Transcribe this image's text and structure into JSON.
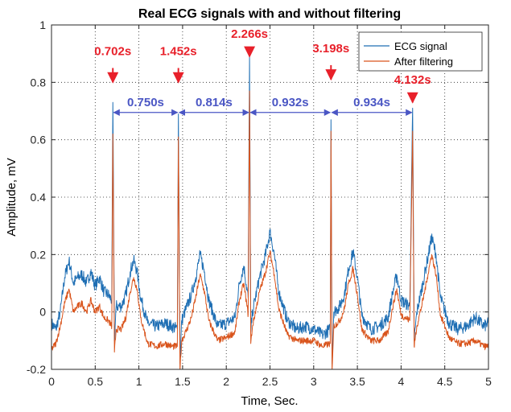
{
  "chart_data": {
    "type": "line",
    "title": "Real ECG signals with and without filtering",
    "xlabel": "Time, Sec.",
    "ylabel": "Amplitude, mV",
    "xlim": [
      0,
      5
    ],
    "ylim": [
      -0.2,
      1
    ],
    "xticks": [
      0,
      0.5,
      1,
      1.5,
      2,
      2.5,
      3,
      3.5,
      4,
      4.5,
      5
    ],
    "yticks": [
      -0.2,
      0,
      0.2,
      0.4,
      0.6,
      0.8,
      1
    ],
    "grid": "dotted",
    "legend_position": "top-right",
    "colors": {
      "raw": "#1f6fb4",
      "filtered": "#d9541c",
      "peak_label": "#e8202a",
      "interval_label": "#4a56c4"
    },
    "series": [
      {
        "name": "ECG signal",
        "key": "raw",
        "baseline_offset": 0.0,
        "points": [
          [
            0,
            -0.04
          ],
          [
            0.05,
            -0.06
          ],
          [
            0.1,
            0.0
          ],
          [
            0.15,
            0.12
          ],
          [
            0.2,
            0.18
          ],
          [
            0.25,
            0.1
          ],
          [
            0.3,
            0.12
          ],
          [
            0.35,
            0.13
          ],
          [
            0.4,
            0.1
          ],
          [
            0.45,
            0.14
          ],
          [
            0.5,
            0.09
          ],
          [
            0.55,
            0.12
          ],
          [
            0.6,
            0.07
          ],
          [
            0.65,
            0.06
          ],
          [
            0.69,
            0.04
          ],
          [
            0.702,
            0.73
          ],
          [
            0.72,
            -0.1
          ],
          [
            0.74,
            0.02
          ],
          [
            0.8,
            0.02
          ],
          [
            0.85,
            0.06
          ],
          [
            0.9,
            0.14
          ],
          [
            0.94,
            0.18
          ],
          [
            0.98,
            0.14
          ],
          [
            1.02,
            0.05
          ],
          [
            1.1,
            -0.04
          ],
          [
            1.2,
            -0.05
          ],
          [
            1.3,
            -0.04
          ],
          [
            1.38,
            -0.05
          ],
          [
            1.44,
            -0.06
          ],
          [
            1.452,
            0.69
          ],
          [
            1.47,
            -0.18
          ],
          [
            1.49,
            -0.03
          ],
          [
            1.55,
            0.02
          ],
          [
            1.6,
            0.06
          ],
          [
            1.65,
            0.12
          ],
          [
            1.7,
            0.2
          ],
          [
            1.75,
            0.14
          ],
          [
            1.8,
            0.04
          ],
          [
            1.9,
            -0.05
          ],
          [
            2.0,
            -0.04
          ],
          [
            2.1,
            -0.02
          ],
          [
            2.15,
            0.1
          ],
          [
            2.2,
            0.16
          ],
          [
            2.25,
            0.05
          ],
          [
            2.266,
            0.89
          ],
          [
            2.28,
            -0.07
          ],
          [
            2.3,
            0.0
          ],
          [
            2.38,
            0.12
          ],
          [
            2.45,
            0.2
          ],
          [
            2.5,
            0.28
          ],
          [
            2.55,
            0.2
          ],
          [
            2.6,
            0.07
          ],
          [
            2.7,
            -0.03
          ],
          [
            2.8,
            -0.06
          ],
          [
            2.9,
            -0.05
          ],
          [
            3.0,
            -0.06
          ],
          [
            3.1,
            -0.08
          ],
          [
            3.19,
            -0.06
          ],
          [
            3.198,
            0.67
          ],
          [
            3.21,
            -0.18
          ],
          [
            3.23,
            0.0
          ],
          [
            3.3,
            0.02
          ],
          [
            3.35,
            0.06
          ],
          [
            3.4,
            0.15
          ],
          [
            3.45,
            0.21
          ],
          [
            3.5,
            0.12
          ],
          [
            3.55,
            -0.01
          ],
          [
            3.65,
            -0.06
          ],
          [
            3.75,
            -0.05
          ],
          [
            3.85,
            -0.02
          ],
          [
            3.9,
            0.06
          ],
          [
            3.95,
            0.13
          ],
          [
            4.0,
            0.04
          ],
          [
            4.1,
            0.02
          ],
          [
            4.132,
            0.71
          ],
          [
            4.15,
            -0.1
          ],
          [
            4.18,
            0.0
          ],
          [
            4.25,
            0.1
          ],
          [
            4.3,
            0.18
          ],
          [
            4.35,
            0.26
          ],
          [
            4.4,
            0.2
          ],
          [
            4.45,
            0.05
          ],
          [
            4.55,
            -0.04
          ],
          [
            4.65,
            -0.06
          ],
          [
            4.75,
            -0.05
          ],
          [
            4.85,
            -0.02
          ],
          [
            4.95,
            -0.05
          ],
          [
            5.0,
            -0.04
          ]
        ]
      },
      {
        "name": "After filtering",
        "key": "filtered",
        "baseline_offset": -0.04,
        "points": [
          [
            0,
            -0.13
          ],
          [
            0.05,
            -0.11
          ],
          [
            0.1,
            -0.05
          ],
          [
            0.15,
            0.03
          ],
          [
            0.2,
            0.08
          ],
          [
            0.25,
            0.0
          ],
          [
            0.3,
            0.02
          ],
          [
            0.35,
            0.03
          ],
          [
            0.4,
            0.0
          ],
          [
            0.45,
            0.04
          ],
          [
            0.5,
            0.0
          ],
          [
            0.55,
            0.02
          ],
          [
            0.6,
            -0.02
          ],
          [
            0.65,
            -0.03
          ],
          [
            0.69,
            -0.05
          ],
          [
            0.702,
            0.62
          ],
          [
            0.72,
            -0.14
          ],
          [
            0.74,
            -0.06
          ],
          [
            0.8,
            -0.06
          ],
          [
            0.85,
            -0.02
          ],
          [
            0.9,
            0.07
          ],
          [
            0.94,
            0.12
          ],
          [
            0.98,
            0.08
          ],
          [
            1.02,
            -0.02
          ],
          [
            1.1,
            -0.11
          ],
          [
            1.2,
            -0.12
          ],
          [
            1.3,
            -0.11
          ],
          [
            1.38,
            -0.12
          ],
          [
            1.44,
            -0.12
          ],
          [
            1.452,
            0.61
          ],
          [
            1.47,
            -0.2
          ],
          [
            1.49,
            -0.1
          ],
          [
            1.55,
            -0.06
          ],
          [
            1.6,
            -0.02
          ],
          [
            1.65,
            0.05
          ],
          [
            1.7,
            0.13
          ],
          [
            1.75,
            0.07
          ],
          [
            1.8,
            -0.03
          ],
          [
            1.9,
            -0.1
          ],
          [
            2.0,
            -0.09
          ],
          [
            2.1,
            -0.07
          ],
          [
            2.15,
            0.04
          ],
          [
            2.2,
            0.1
          ],
          [
            2.25,
            -0.01
          ],
          [
            2.266,
            0.77
          ],
          [
            2.28,
            -0.11
          ],
          [
            2.3,
            -0.05
          ],
          [
            2.38,
            0.07
          ],
          [
            2.45,
            0.14
          ],
          [
            2.5,
            0.21
          ],
          [
            2.55,
            0.13
          ],
          [
            2.6,
            0.01
          ],
          [
            2.7,
            -0.08
          ],
          [
            2.8,
            -0.1
          ],
          [
            2.9,
            -0.1
          ],
          [
            3.0,
            -0.1
          ],
          [
            3.1,
            -0.12
          ],
          [
            3.19,
            -0.11
          ],
          [
            3.198,
            0.63
          ],
          [
            3.21,
            -0.2
          ],
          [
            3.23,
            -0.05
          ],
          [
            3.3,
            -0.03
          ],
          [
            3.35,
            0.01
          ],
          [
            3.4,
            0.1
          ],
          [
            3.45,
            0.15
          ],
          [
            3.5,
            0.06
          ],
          [
            3.55,
            -0.06
          ],
          [
            3.65,
            -0.1
          ],
          [
            3.75,
            -0.1
          ],
          [
            3.85,
            -0.07
          ],
          [
            3.9,
            0.01
          ],
          [
            3.95,
            0.08
          ],
          [
            4.0,
            -0.01
          ],
          [
            4.1,
            -0.03
          ],
          [
            4.132,
            0.63
          ],
          [
            4.15,
            -0.12
          ],
          [
            4.18,
            -0.05
          ],
          [
            4.25,
            0.04
          ],
          [
            4.3,
            0.12
          ],
          [
            4.35,
            0.2
          ],
          [
            4.4,
            0.13
          ],
          [
            4.45,
            -0.01
          ],
          [
            4.55,
            -0.09
          ],
          [
            4.65,
            -0.11
          ],
          [
            4.75,
            -0.11
          ],
          [
            4.85,
            -0.1
          ],
          [
            4.95,
            -0.12
          ],
          [
            5.0,
            -0.12
          ]
        ]
      }
    ],
    "peak_annotations": [
      {
        "label": "0.702s",
        "x": 0.702,
        "text_y": 0.895,
        "arrow_from": 0.85,
        "arrow_to": 0.8
      },
      {
        "label": "1.452s",
        "x": 1.452,
        "text_y": 0.895,
        "arrow_from": 0.85,
        "arrow_to": 0.8
      },
      {
        "label": "2.266s",
        "x": 2.266,
        "text_y": 0.955,
        "arrow_from": 0.92,
        "arrow_to": 0.89
      },
      {
        "label": "3.198s",
        "x": 3.198,
        "text_y": 0.905,
        "arrow_from": 0.86,
        "arrow_to": 0.81
      },
      {
        "label": "4.132s",
        "x": 4.132,
        "text_y": 0.795,
        "arrow_from": 0.76,
        "arrow_to": 0.73
      }
    ],
    "interval_annotations": [
      {
        "label": "0.750s",
        "x_start": 0.702,
        "x_end": 1.452,
        "y": 0.695
      },
      {
        "label": "0.814s",
        "x_start": 1.452,
        "x_end": 2.266,
        "y": 0.695
      },
      {
        "label": "0.932s",
        "x_start": 2.266,
        "x_end": 3.198,
        "y": 0.695
      },
      {
        "label": "0.934s",
        "x_start": 3.198,
        "x_end": 4.132,
        "y": 0.695
      }
    ]
  }
}
